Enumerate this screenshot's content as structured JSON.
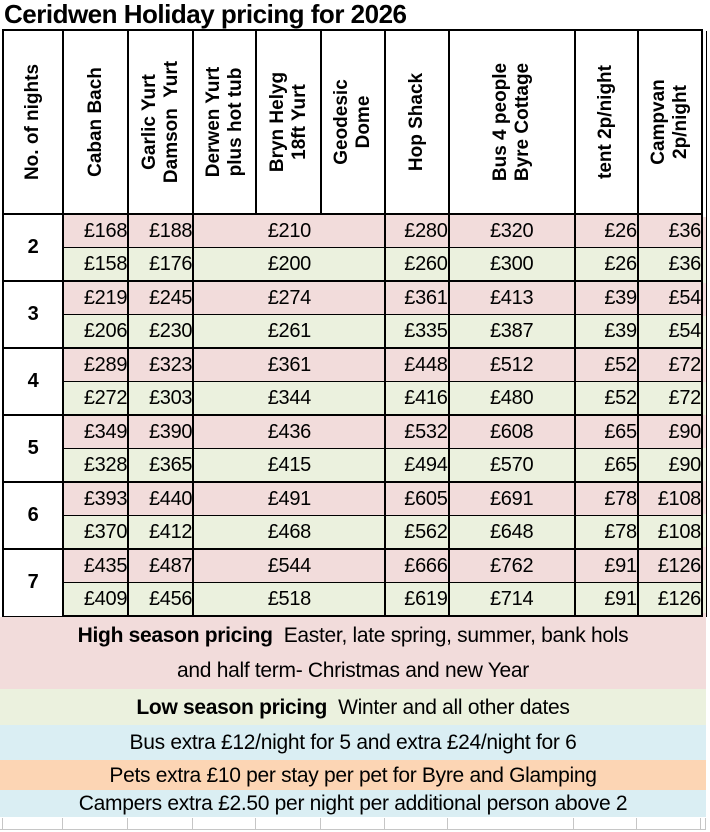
{
  "title": "Ceridwen Holiday pricing for 2026",
  "table": {
    "columns": [
      {
        "id": "no-of-nights",
        "lines": [
          "No. of nights"
        ]
      },
      {
        "id": "caban-bach",
        "lines": [
          "Caban Bach"
        ]
      },
      {
        "id": "garlic-damson-yurt",
        "lines": [
          "Garlic Yurt",
          "Damson  Yurt"
        ]
      },
      {
        "id": "derwen-yurt-hot-tub",
        "lines": [
          "Derwen Yurt",
          "plus hot tub"
        ]
      },
      {
        "id": "bryn-helyg-yurt",
        "lines": [
          "Bryn Helyg",
          "18ft Yurt"
        ]
      },
      {
        "id": "geodesic-dome",
        "lines": [
          "Geodesic",
          "Dome"
        ]
      },
      {
        "id": "hop-shack",
        "lines": [
          "Hop Shack"
        ]
      },
      {
        "id": "bus-byre-cottage",
        "lines": [
          "Bus 4 people",
          "Byre Cottage"
        ]
      },
      {
        "id": "tent",
        "lines": [
          "tent 2p/night"
        ]
      },
      {
        "id": "campvan",
        "lines": [
          "Campvan",
          "2p/night"
        ]
      }
    ],
    "price_columns": [
      "caban-bach",
      "garlic-yurt",
      "damson-derwen-bryn-geodesic",
      "hop-shack",
      "bus-byre-cottage",
      "tent",
      "campvan"
    ],
    "rows": [
      {
        "nights": "2",
        "high": [
          "£168",
          "£188",
          "£210",
          "£280",
          "£320",
          "£26",
          "£36"
        ],
        "low": [
          "£158",
          "£176",
          "£200",
          "£260",
          "£300",
          "£26",
          "£36"
        ]
      },
      {
        "nights": "3",
        "high": [
          "£219",
          "£245",
          "£274",
          "£361",
          "£413",
          "£39",
          "£54"
        ],
        "low": [
          "£206",
          "£230",
          "£261",
          "£335",
          "£387",
          "£39",
          "£54"
        ]
      },
      {
        "nights": "4",
        "high": [
          "£289",
          "£323",
          "£361",
          "£448",
          "£512",
          "£52",
          "£72"
        ],
        "low": [
          "£272",
          "£303",
          "£344",
          "£416",
          "£480",
          "£52",
          "£72"
        ]
      },
      {
        "nights": "5",
        "high": [
          "£349",
          "£390",
          "£436",
          "£532",
          "£608",
          "£65",
          "£90"
        ],
        "low": [
          "£328",
          "£365",
          "£415",
          "£494",
          "£570",
          "£65",
          "£90"
        ]
      },
      {
        "nights": "6",
        "high": [
          "£393",
          "£440",
          "£491",
          "£605",
          "£691",
          "£78",
          "£108"
        ],
        "low": [
          "£370",
          "£412",
          "£468",
          "£562",
          "£648",
          "£78",
          "£108"
        ]
      },
      {
        "nights": "7",
        "high": [
          "£435",
          "£487",
          "£544",
          "£666",
          "£762",
          "£91",
          "£126"
        ],
        "low": [
          "£409",
          "£456",
          "£518",
          "£619",
          "£714",
          "£91",
          "£126"
        ]
      }
    ]
  },
  "notes": [
    {
      "id": "high-season",
      "bold": "High season pricing",
      "text": "  Easter, late spring, summer, bank hols",
      "text2": "and half term- Christmas and new Year"
    },
    {
      "id": "low-season",
      "bold": "Low season pricing",
      "text": "  Winter and all other dates"
    },
    {
      "id": "bus-extra",
      "text": "Bus extra £12/night for 5 and extra £24/night for 6"
    },
    {
      "id": "pets-extra",
      "text": "Pets extra £10 per stay per pet for Byre and Glamping"
    },
    {
      "id": "campers-extra",
      "text": "Campers extra £2.50 per night per additional person above 2"
    }
  ],
  "colors": {
    "high_season_pink": "#f2dcdb",
    "low_season_green": "#ebf1de",
    "info_blue": "#daeef3",
    "pets_orange": "#fcd5b4",
    "border_black": "#000000",
    "gridline_gray": "#c6c6c6"
  }
}
